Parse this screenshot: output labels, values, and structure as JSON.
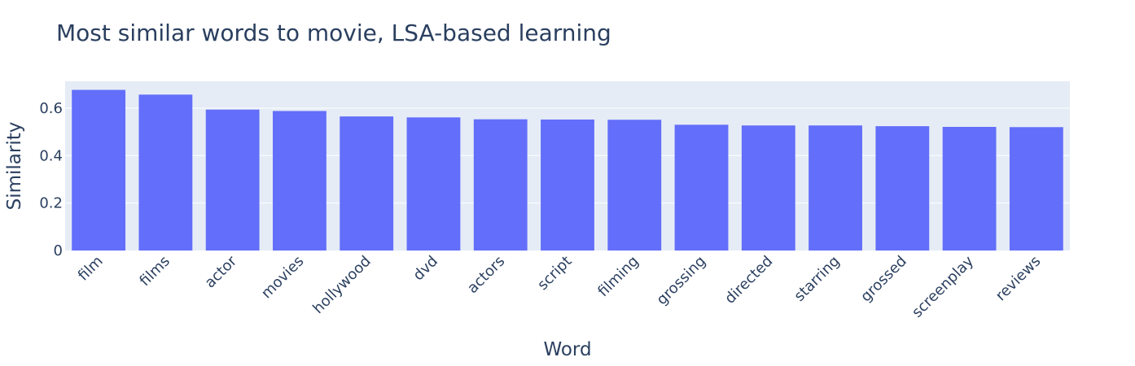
{
  "chart_data": {
    "type": "bar",
    "title": "Most similar words to movie, LSA-based learning",
    "xlabel": "Word",
    "ylabel": "Similarity",
    "categories": [
      "film",
      "films",
      "actor",
      "movies",
      "hollywood",
      "dvd",
      "actors",
      "script",
      "filming",
      "grossing",
      "directed",
      "starring",
      "grossed",
      "screenplay",
      "reviews"
    ],
    "values": [
      0.677,
      0.657,
      0.594,
      0.588,
      0.565,
      0.561,
      0.553,
      0.552,
      0.551,
      0.53,
      0.527,
      0.527,
      0.524,
      0.521,
      0.52
    ],
    "yticks": [
      0,
      0.2,
      0.4,
      0.6
    ],
    "ytick_labels": [
      "0",
      "0.2",
      "0.4",
      "0.6"
    ],
    "ylim": [
      0,
      0.713
    ],
    "grid": true,
    "colors": {
      "bar": "#636efa",
      "plot_bg": "#e5ecf6",
      "grid": "#ffffff",
      "text": "#2a3f5f"
    }
  }
}
